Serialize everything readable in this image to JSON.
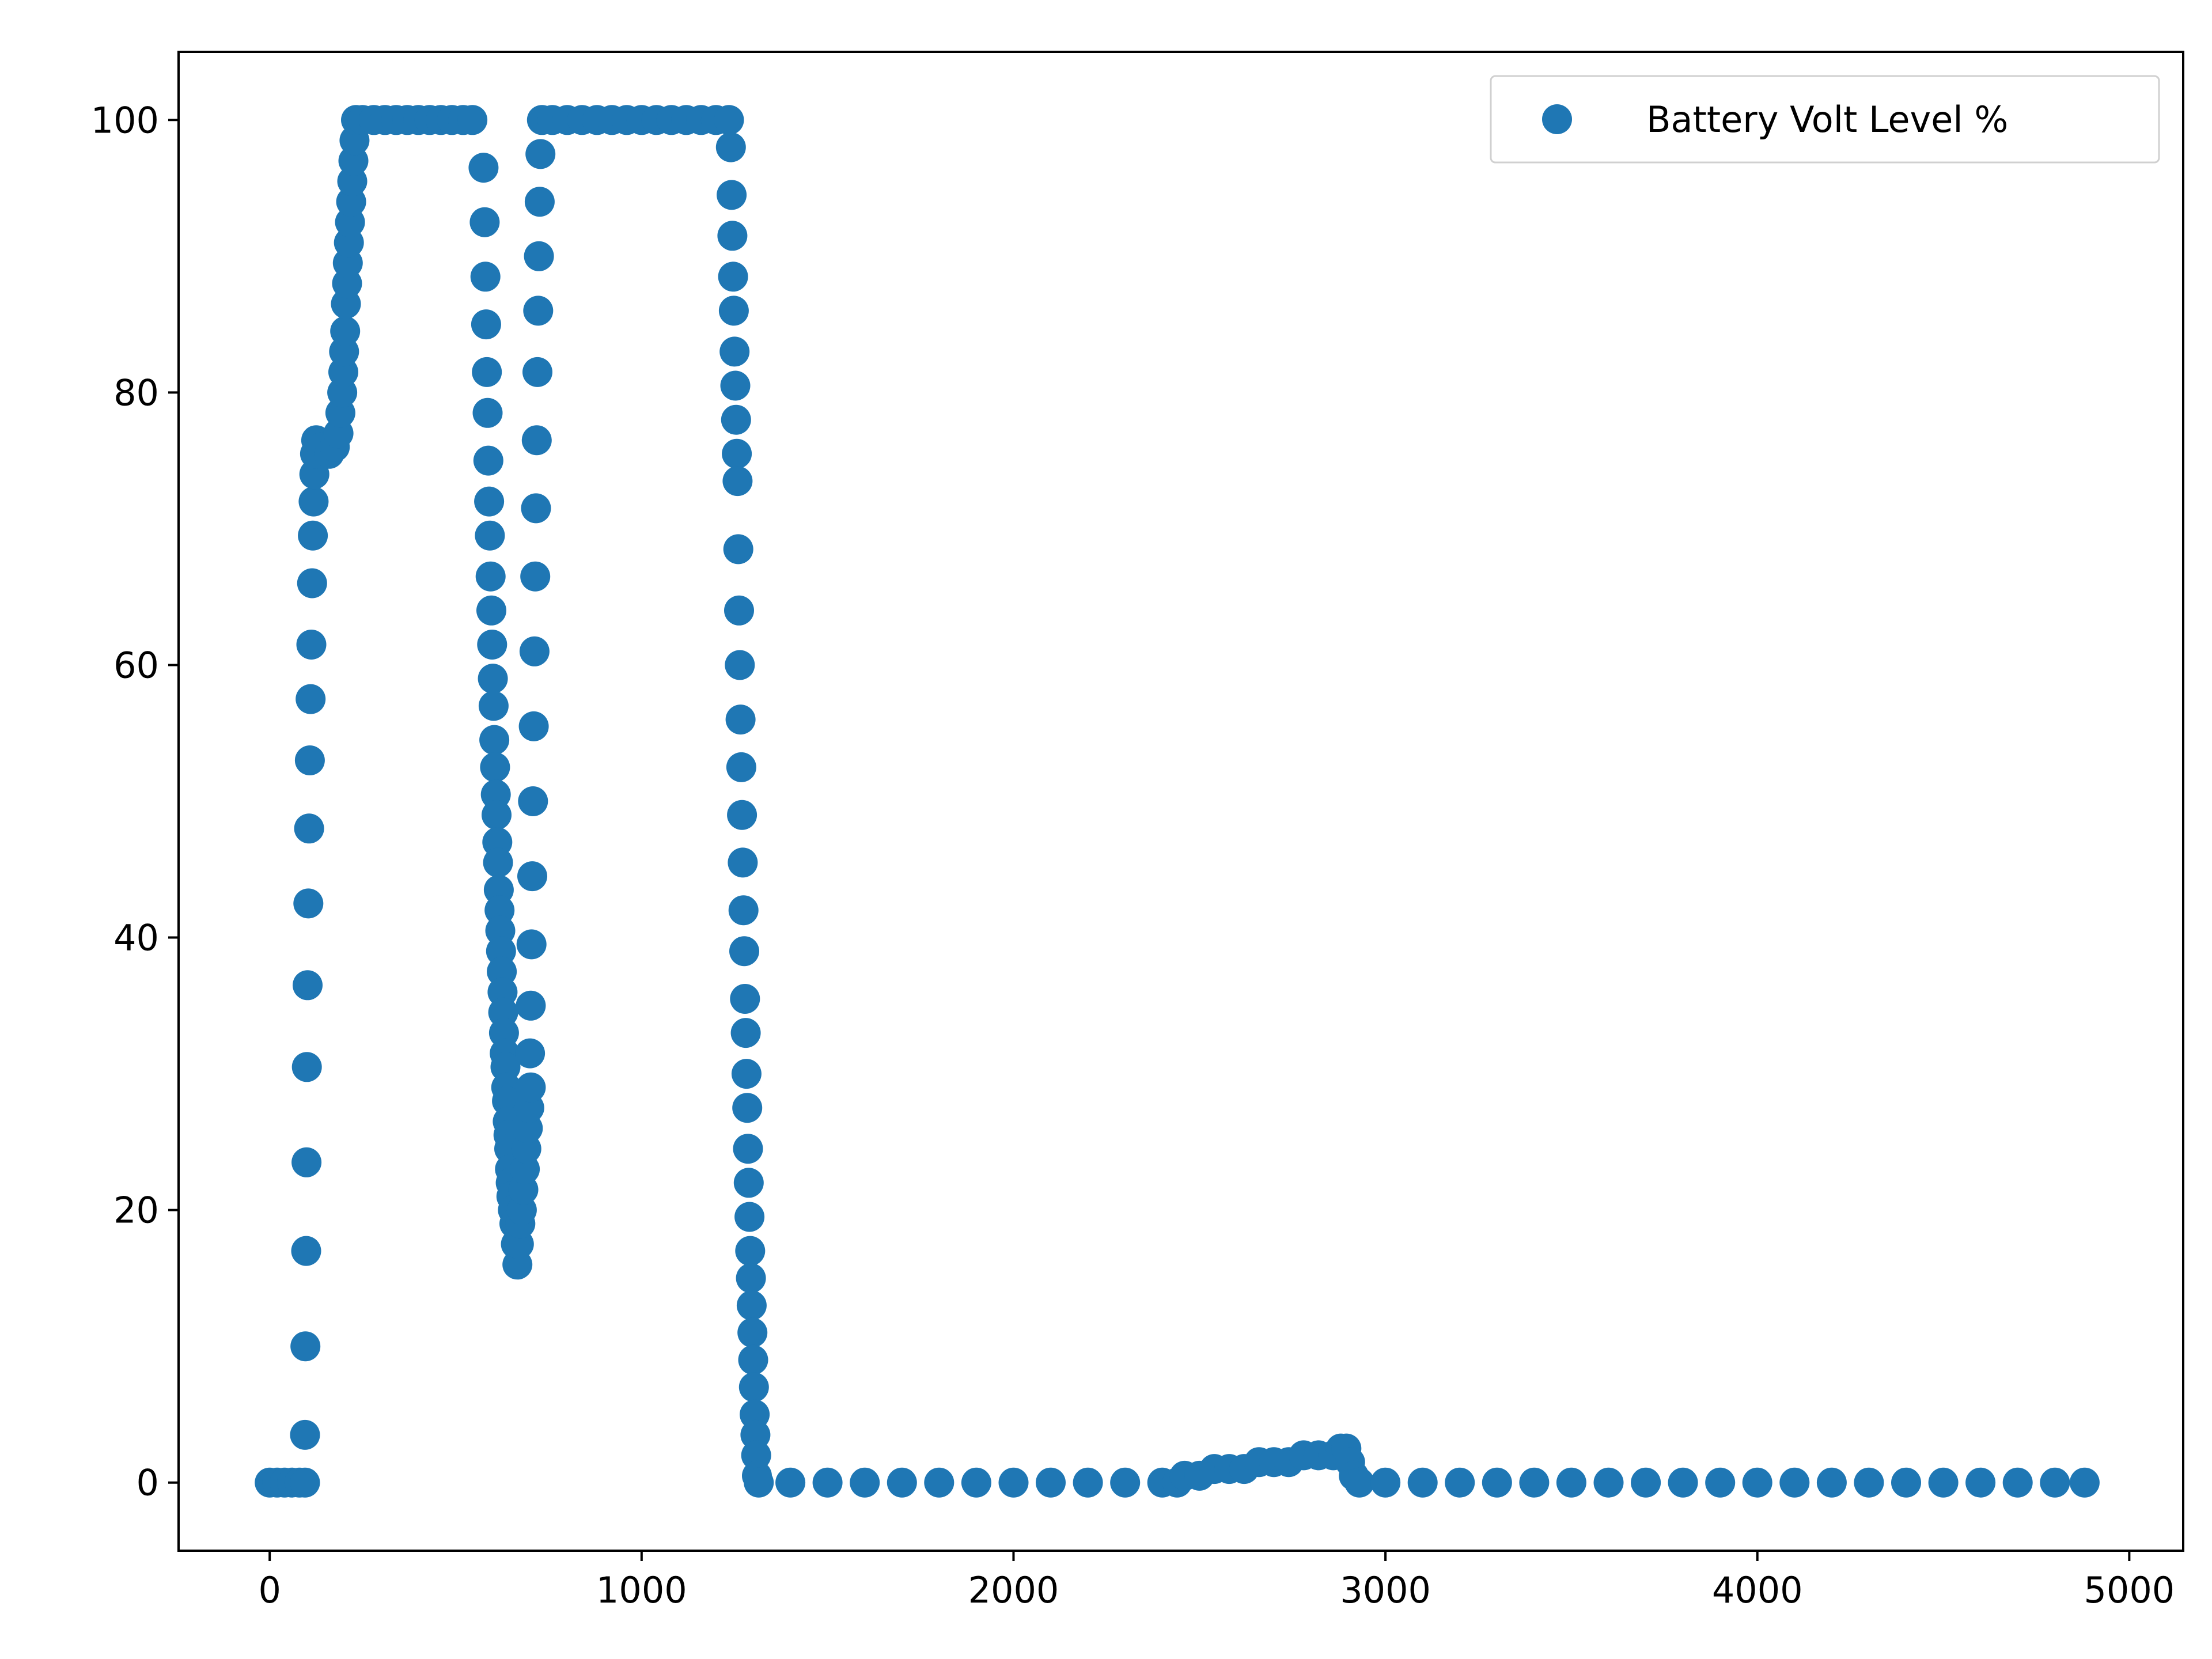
{
  "chart_data": {
    "type": "scatter",
    "title": "",
    "xlabel": "",
    "ylabel": "",
    "xlim": [
      -245,
      5145
    ],
    "ylim": [
      -5,
      105
    ],
    "xticks": [
      0,
      1000,
      2000,
      3000,
      4000,
      5000
    ],
    "xtick_labels": [
      "0",
      "1000",
      "2000",
      "3000",
      "4000",
      "5000"
    ],
    "yticks": [
      0,
      20,
      40,
      60,
      80,
      100
    ],
    "ytick_labels": [
      "0",
      "20",
      "40",
      "60",
      "80",
      "100"
    ],
    "grid": false,
    "legend": {
      "placement": "upper-right"
    },
    "series": [
      {
        "name": "Battery Volt Level %",
        "color": "#1f77b4",
        "marker": "circle",
        "points": [
          [
            0,
            0
          ],
          [
            20,
            0
          ],
          [
            40,
            0
          ],
          [
            60,
            0
          ],
          [
            80,
            0
          ],
          [
            95,
            0
          ],
          [
            95,
            3.5
          ],
          [
            96,
            10
          ],
          [
            98,
            17
          ],
          [
            99,
            23.5
          ],
          [
            100,
            30.5
          ],
          [
            102,
            36.5
          ],
          [
            104,
            42.5
          ],
          [
            106,
            48
          ],
          [
            108,
            53
          ],
          [
            110,
            57.5
          ],
          [
            112,
            61.5
          ],
          [
            114,
            66
          ],
          [
            116,
            69.5
          ],
          [
            118,
            72
          ],
          [
            120,
            74
          ],
          [
            122,
            75.5
          ],
          [
            125,
            76.5
          ],
          [
            140,
            76
          ],
          [
            160,
            75.5
          ],
          [
            175,
            76
          ],
          [
            185,
            77
          ],
          [
            190,
            78.5
          ],
          [
            195,
            80
          ],
          [
            198,
            81.5
          ],
          [
            200,
            83
          ],
          [
            203,
            84.5
          ],
          [
            205,
            86.5
          ],
          [
            208,
            88
          ],
          [
            210,
            89.5
          ],
          [
            213,
            91
          ],
          [
            216,
            92.5
          ],
          [
            219,
            94
          ],
          [
            222,
            95.5
          ],
          [
            225,
            97
          ],
          [
            228,
            98.5
          ],
          [
            232,
            100
          ],
          [
            250,
            100
          ],
          [
            280,
            100
          ],
          [
            310,
            100
          ],
          [
            340,
            100
          ],
          [
            370,
            100
          ],
          [
            400,
            100
          ],
          [
            430,
            100
          ],
          [
            460,
            100
          ],
          [
            490,
            100
          ],
          [
            520,
            100
          ],
          [
            545,
            100
          ],
          [
            575,
            96.5
          ],
          [
            578,
            92.5
          ],
          [
            580,
            88.5
          ],
          [
            582,
            85
          ],
          [
            584,
            81.5
          ],
          [
            586,
            78.5
          ],
          [
            588,
            75
          ],
          [
            590,
            72
          ],
          [
            592,
            69.5
          ],
          [
            594,
            66.5
          ],
          [
            596,
            64
          ],
          [
            598,
            61.5
          ],
          [
            600,
            59
          ],
          [
            602,
            57
          ],
          [
            604,
            54.5
          ],
          [
            606,
            52.5
          ],
          [
            608,
            50.5
          ],
          [
            610,
            49
          ],
          [
            612,
            47
          ],
          [
            614,
            45.5
          ],
          [
            616,
            43.5
          ],
          [
            618,
            42
          ],
          [
            620,
            40.5
          ],
          [
            622,
            39
          ],
          [
            624,
            37.5
          ],
          [
            626,
            36
          ],
          [
            628,
            34.5
          ],
          [
            630,
            33
          ],
          [
            632,
            31.5
          ],
          [
            634,
            30.5
          ],
          [
            636,
            29
          ],
          [
            638,
            28
          ],
          [
            640,
            26.5
          ],
          [
            642,
            25.5
          ],
          [
            644,
            24.5
          ],
          [
            646,
            23
          ],
          [
            648,
            22
          ],
          [
            650,
            21
          ],
          [
            654,
            20
          ],
          [
            658,
            19
          ],
          [
            662,
            17.5
          ],
          [
            666,
            16
          ],
          [
            670,
            17.5
          ],
          [
            674,
            19
          ],
          [
            678,
            20
          ],
          [
            682,
            21.5
          ],
          [
            686,
            23
          ],
          [
            690,
            24.5
          ],
          [
            694,
            26
          ],
          [
            698,
            27.5
          ],
          [
            702,
            29
          ],
          [
            700,
            31.5
          ],
          [
            702,
            35
          ],
          [
            704,
            39.5
          ],
          [
            706,
            44.5
          ],
          [
            708,
            50
          ],
          [
            710,
            55.5
          ],
          [
            712,
            61
          ],
          [
            714,
            66.5
          ],
          [
            716,
            71.5
          ],
          [
            718,
            76.5
          ],
          [
            720,
            81.5
          ],
          [
            722,
            86
          ],
          [
            724,
            90
          ],
          [
            726,
            94
          ],
          [
            728,
            97.5
          ],
          [
            732,
            100
          ],
          [
            760,
            100
          ],
          [
            800,
            100
          ],
          [
            840,
            100
          ],
          [
            880,
            100
          ],
          [
            920,
            100
          ],
          [
            960,
            100
          ],
          [
            1000,
            100
          ],
          [
            1040,
            100
          ],
          [
            1080,
            100
          ],
          [
            1120,
            100
          ],
          [
            1160,
            100
          ],
          [
            1200,
            100
          ],
          [
            1235,
            100
          ],
          [
            1240,
            98
          ],
          [
            1242,
            94.5
          ],
          [
            1244,
            91.5
          ],
          [
            1246,
            88.5
          ],
          [
            1248,
            86
          ],
          [
            1250,
            83
          ],
          [
            1252,
            80.5
          ],
          [
            1254,
            78
          ],
          [
            1256,
            75.5
          ],
          [
            1258,
            73.5
          ],
          [
            1260,
            68.5
          ],
          [
            1262,
            64
          ],
          [
            1264,
            60
          ],
          [
            1266,
            56
          ],
          [
            1268,
            52.5
          ],
          [
            1270,
            49
          ],
          [
            1272,
            45.5
          ],
          [
            1274,
            42
          ],
          [
            1276,
            39
          ],
          [
            1278,
            35.5
          ],
          [
            1280,
            33
          ],
          [
            1282,
            30
          ],
          [
            1284,
            27.5
          ],
          [
            1286,
            24.5
          ],
          [
            1288,
            22
          ],
          [
            1290,
            19.5
          ],
          [
            1292,
            17
          ],
          [
            1294,
            15
          ],
          [
            1296,
            13
          ],
          [
            1298,
            11
          ],
          [
            1300,
            9
          ],
          [
            1302,
            7
          ],
          [
            1304,
            5
          ],
          [
            1306,
            3.5
          ],
          [
            1308,
            2
          ],
          [
            1310,
            0.5
          ],
          [
            1315,
            0
          ],
          [
            1400,
            0
          ],
          [
            1500,
            0
          ],
          [
            1600,
            0
          ],
          [
            1700,
            0
          ],
          [
            1800,
            0
          ],
          [
            1900,
            0
          ],
          [
            2000,
            0
          ],
          [
            2100,
            0
          ],
          [
            2200,
            0
          ],
          [
            2300,
            0
          ],
          [
            2400,
            0
          ],
          [
            2440,
            0
          ],
          [
            2460,
            0.5
          ],
          [
            2500,
            0.5
          ],
          [
            2540,
            1
          ],
          [
            2580,
            1
          ],
          [
            2620,
            1
          ],
          [
            2660,
            1.5
          ],
          [
            2700,
            1.5
          ],
          [
            2740,
            1.5
          ],
          [
            2780,
            2
          ],
          [
            2820,
            2
          ],
          [
            2860,
            2
          ],
          [
            2880,
            2.5
          ],
          [
            2895,
            2.5
          ],
          [
            2905,
            1.5
          ],
          [
            2915,
            0.5
          ],
          [
            2930,
            0
          ],
          [
            3000,
            0
          ],
          [
            3100,
            0
          ],
          [
            3200,
            0
          ],
          [
            3300,
            0
          ],
          [
            3400,
            0
          ],
          [
            3500,
            0
          ],
          [
            3600,
            0
          ],
          [
            3700,
            0
          ],
          [
            3800,
            0
          ],
          [
            3900,
            0
          ],
          [
            4000,
            0
          ],
          [
            4100,
            0
          ],
          [
            4200,
            0
          ],
          [
            4300,
            0
          ],
          [
            4400,
            0
          ],
          [
            4500,
            0
          ],
          [
            4600,
            0
          ],
          [
            4700,
            0
          ],
          [
            4800,
            0
          ],
          [
            4880,
            0
          ]
        ]
      }
    ]
  }
}
